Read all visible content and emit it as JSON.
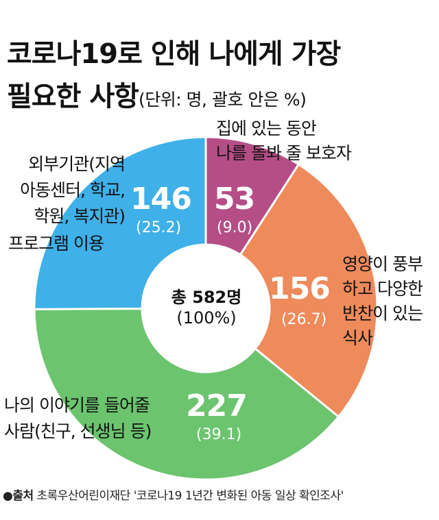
{
  "title": {
    "line1": "코로나19로 인해 나에게 가장",
    "line2": "필요한 사항",
    "unit": "(단위: 명, 괄호 안은 %)"
  },
  "center": {
    "total": "총 582명",
    "percent": "(100%)"
  },
  "source": {
    "label": "●출처",
    "text": "초록우산어린이재단 '코로나19 1년간 변화된 아동 일상 확인조사'"
  },
  "colors": {
    "caregiver": "#b54e87",
    "meal": "#ef8a5b",
    "person": "#6cc46f",
    "program": "#3fb0e8"
  },
  "chart_data": {
    "type": "pie",
    "donut": true,
    "total": 582,
    "slices": [
      {
        "label": "집에 있는 동안 나를 돌봐 줄 보호자",
        "line1": "집에 있는 동안",
        "line2": "나를 돌봐 줄 보호자",
        "value": 53,
        "value_text": "53",
        "percent": 9.0,
        "percent_text": "(9.0)",
        "color": "#b54e87"
      },
      {
        "label": "영양이 풍부하고 다양한 반찬이 있는 식사",
        "line1": "영양이 풍부",
        "line2": "하고 다양한",
        "line3": "반찬이 있는",
        "line4": "식사",
        "value": 156,
        "value_text": "156",
        "percent": 26.7,
        "percent_text": "(26.7)",
        "color": "#ef8a5b"
      },
      {
        "label": "나의 이야기를 들어줄 사람(친구, 선생님 등)",
        "line1": "나의 이야기를 들어줄",
        "line2": "사람(친구, 선생님 등)",
        "value": 227,
        "value_text": "227",
        "percent": 39.1,
        "percent_text": "(39.1)",
        "color": "#6cc46f"
      },
      {
        "label": "외부기관(지역아동센터, 학교, 학원, 복지관) 프로그램 이용",
        "line1": "외부기관(지역",
        "line2": "아동센터, 학교,",
        "line3": "학원, 복지관)",
        "line4": "프로그램 이용",
        "value": 146,
        "value_text": "146",
        "percent": 25.2,
        "percent_text": "(25.2)",
        "color": "#3fb0e8"
      }
    ]
  }
}
